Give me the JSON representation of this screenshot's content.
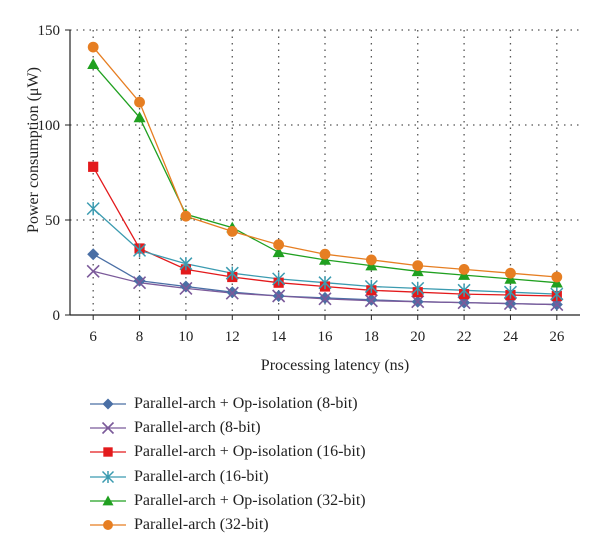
{
  "chart_data": {
    "type": "line",
    "title": "",
    "xlabel": "Processing latency (ns)",
    "ylabel": "Power consumption (μW)",
    "x": [
      6,
      8,
      10,
      12,
      14,
      16,
      18,
      20,
      22,
      24,
      26
    ],
    "xlim": [
      5,
      27
    ],
    "ylim": [
      0,
      150
    ],
    "yticks": [
      0,
      50,
      100,
      150
    ],
    "grid": true,
    "legend_position": "bottom",
    "series": [
      {
        "name": "Parallel-arch + Op-isolation (8-bit)",
        "color": "#4a6fa5",
        "marker": "diamond",
        "values": [
          32,
          18,
          15,
          12,
          10,
          9,
          8,
          7,
          6.5,
          6,
          5.5
        ]
      },
      {
        "name": "Parallel-arch (8-bit)",
        "color": "#7b5a9a",
        "marker": "x",
        "values": [
          23,
          17,
          14,
          11.5,
          10,
          8.5,
          7.5,
          7,
          6.5,
          6,
          5.5
        ]
      },
      {
        "name": "Parallel-arch + Op-isolation (16-bit)",
        "color": "#e31a1c",
        "marker": "square",
        "values": [
          78,
          35,
          24,
          20,
          17,
          15,
          13,
          12,
          11,
          10.5,
          10
        ]
      },
      {
        "name": "Parallel-arch (16-bit)",
        "color": "#3b9bb0",
        "marker": "asterisk",
        "values": [
          56,
          34,
          27,
          22,
          19,
          17,
          15,
          14,
          13,
          12,
          11
        ]
      },
      {
        "name": "Parallel-arch + Op-isolation (32-bit)",
        "color": "#20a020",
        "marker": "triangle",
        "values": [
          132,
          104,
          53,
          46,
          33,
          29,
          26,
          23,
          21,
          19,
          17
        ]
      },
      {
        "name": "Parallel-arch (32-bit)",
        "color": "#e67e22",
        "marker": "circle",
        "values": [
          141,
          112,
          52,
          44,
          37,
          32,
          29,
          26,
          24,
          22,
          20
        ]
      }
    ]
  }
}
